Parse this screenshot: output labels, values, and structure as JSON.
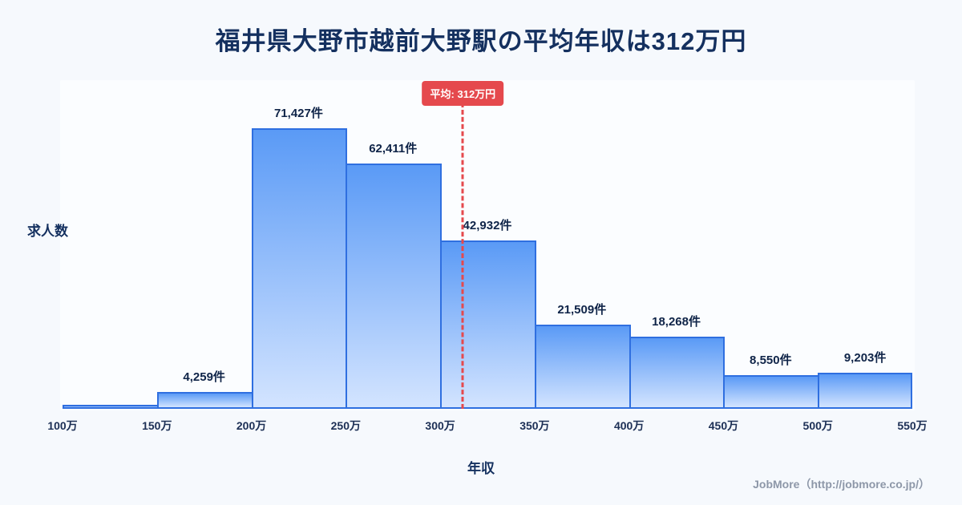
{
  "title": "福井県大野市越前大野駅の平均年収は312万円",
  "chart_data": {
    "type": "bar",
    "subtype": "histogram",
    "title": "福井県大野市越前大野駅の平均年収は312万円",
    "xlabel": "年収",
    "ylabel": "求人数",
    "bin_edge_labels": [
      "100万",
      "150万",
      "200万",
      "250万",
      "300万",
      "350万",
      "400万",
      "450万",
      "500万",
      "550万"
    ],
    "values": [
      null,
      4259,
      71427,
      62411,
      42932,
      21509,
      18268,
      8550,
      9203
    ],
    "value_labels": [
      "",
      "4,259件",
      "71,427件",
      "62,411件",
      "42,932件",
      "21,509件",
      "18,268件",
      "8,550件",
      "9,203件"
    ],
    "mean_line": {
      "label": "平均: 312万円",
      "x_value": 312,
      "x_min": 100,
      "x_max": 550,
      "color": "#e5494d"
    },
    "colors": {
      "bar_fill_top": "#5a9af6",
      "bar_fill_bottom": "#d3e4ff",
      "bar_border": "#2f6fe0",
      "title_text": "#14305f",
      "background": "#f6f9fd"
    },
    "grid": false,
    "legend": false
  },
  "footer": {
    "credit": "JobMore（http://jobmore.co.jp/）"
  }
}
